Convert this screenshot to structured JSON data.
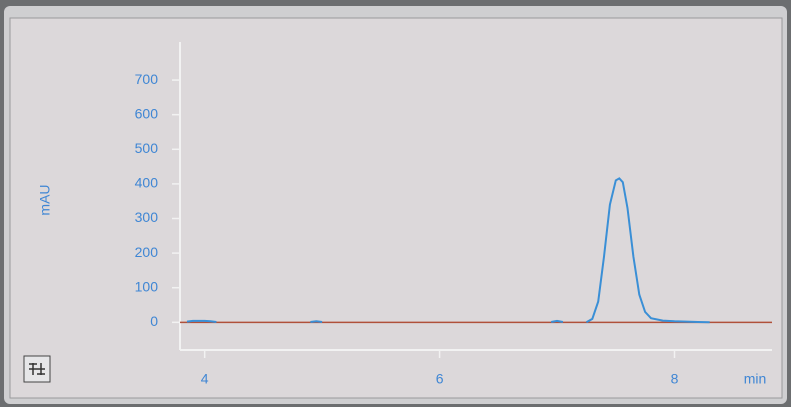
{
  "chart_data": {
    "type": "line",
    "y_label": "mAU",
    "x_label": "min",
    "x": [
      3.85,
      3.9,
      4.0,
      4.05,
      4.1,
      4.5,
      4.9,
      4.95,
      5.0,
      6.0,
      6.95,
      7.0,
      7.05,
      7.15,
      7.25,
      7.3,
      7.35,
      7.4,
      7.45,
      7.5,
      7.53,
      7.56,
      7.6,
      7.65,
      7.7,
      7.75,
      7.8,
      7.9,
      8.0,
      8.1,
      8.2,
      8.3
    ],
    "series": [
      {
        "color": "#3a8fd6",
        "values": [
          2,
          4,
          4,
          3,
          1,
          null,
          1,
          3,
          1,
          null,
          1,
          4,
          1,
          null,
          0,
          10,
          60,
          190,
          340,
          410,
          416,
          405,
          330,
          190,
          80,
          30,
          12,
          5,
          3,
          2,
          1,
          0
        ]
      }
    ],
    "xlim": [
      3.79,
      8.83
    ],
    "xticks": [
      4,
      6,
      8
    ],
    "ylim": [
      -80,
      810
    ],
    "yticks": [
      0,
      100,
      200,
      300,
      400,
      500,
      600,
      700
    ],
    "baseline_color": "#b0503a"
  }
}
